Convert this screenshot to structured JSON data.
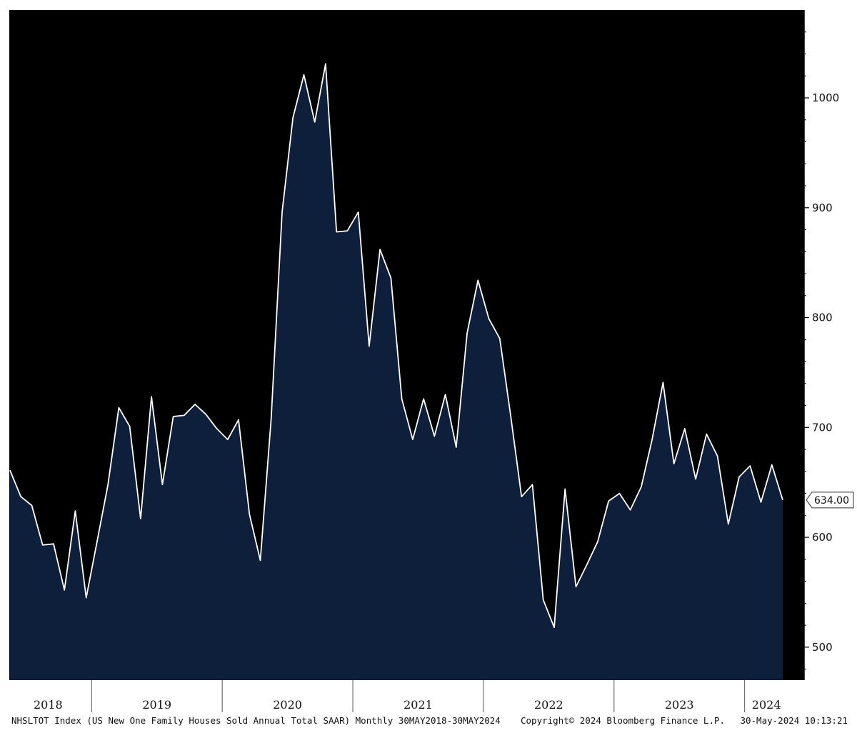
{
  "colors": {
    "background": "#000000",
    "fill": "#0e1f3c",
    "line": "#ffffff",
    "axis_band": "#ffffff",
    "label_box_border": "#333333"
  },
  "chart_data": {
    "type": "area",
    "title": "",
    "xlabel": "",
    "ylabel": "",
    "x_range": [
      "2018-05",
      "2024-04"
    ],
    "ylim": [
      470,
      1080
    ],
    "y_ticks": [
      500,
      600,
      700,
      800,
      900,
      1000
    ],
    "year_labels": [
      "2018",
      "2019",
      "2020",
      "2021",
      "2022",
      "2023",
      "2024"
    ],
    "grid": false,
    "series": [
      {
        "x": [
          "2018-05",
          "2018-06",
          "2018-07",
          "2018-08",
          "2018-09",
          "2018-10",
          "2018-11",
          "2018-12",
          "2019-01",
          "2019-02",
          "2019-03",
          "2019-04",
          "2019-05",
          "2019-06",
          "2019-07",
          "2019-08",
          "2019-09",
          "2019-10",
          "2019-11",
          "2019-12",
          "2020-01",
          "2020-02",
          "2020-03",
          "2020-04",
          "2020-05",
          "2020-06",
          "2020-07",
          "2020-08",
          "2020-09",
          "2020-10",
          "2020-11",
          "2020-12",
          "2021-01",
          "2021-02",
          "2021-03",
          "2021-04",
          "2021-05",
          "2021-06",
          "2021-07",
          "2021-08",
          "2021-09",
          "2021-10",
          "2021-11",
          "2021-12",
          "2022-01",
          "2022-02",
          "2022-03",
          "2022-04",
          "2022-05",
          "2022-06",
          "2022-07",
          "2022-08",
          "2022-09",
          "2022-10",
          "2022-11",
          "2022-12",
          "2023-01",
          "2023-02",
          "2023-03",
          "2023-04",
          "2023-05",
          "2023-06",
          "2023-07",
          "2023-08",
          "2023-09",
          "2023-10",
          "2023-11",
          "2023-12",
          "2024-01",
          "2024-02",
          "2024-03",
          "2024-04"
        ],
        "values": [
          661,
          637,
          629,
          593,
          594,
          552,
          624,
          545,
          596,
          648,
          718,
          701,
          617,
          728,
          648,
          710,
          711,
          721,
          712,
          699,
          689,
          707,
          621,
          579,
          708,
          896,
          982,
          1021,
          978,
          1031,
          878,
          879,
          896,
          774,
          862,
          836,
          726,
          689,
          726,
          692,
          730,
          682,
          786,
          834,
          799,
          781,
          711,
          637,
          648,
          543,
          518,
          644,
          555,
          575,
          596,
          633,
          640,
          625,
          646,
          689,
          741,
          667,
          699,
          653,
          694,
          674,
          612,
          655,
          665,
          632,
          666,
          634
        ]
      }
    ],
    "last_value_label": "634.00",
    "footer": {
      "left": "NHSLTOT Index (US New One Family Houses Sold Annual Total SAAR)  Monthly 30MAY2018-30MAY2024",
      "center": "Copyright© 2024 Bloomberg Finance L.P.",
      "right": "30-May-2024 10:13:21"
    }
  }
}
